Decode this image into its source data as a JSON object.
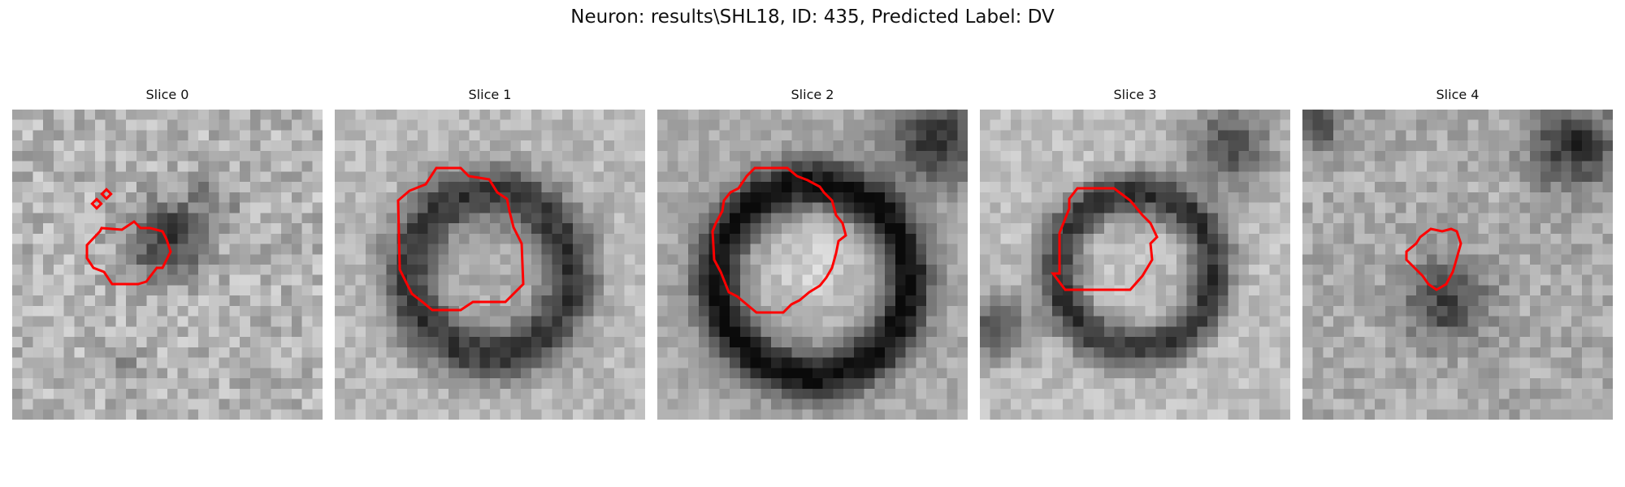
{
  "figure": {
    "title": "Neuron: results\\SHL18, ID: 435, Predicted Label: DV"
  },
  "contour_color": "#ff0000",
  "panels": [
    {
      "title": "Slice 0"
    },
    {
      "title": "Slice 1"
    },
    {
      "title": "Slice 2"
    },
    {
      "title": "Slice 3"
    },
    {
      "title": "Slice 4"
    }
  ]
}
